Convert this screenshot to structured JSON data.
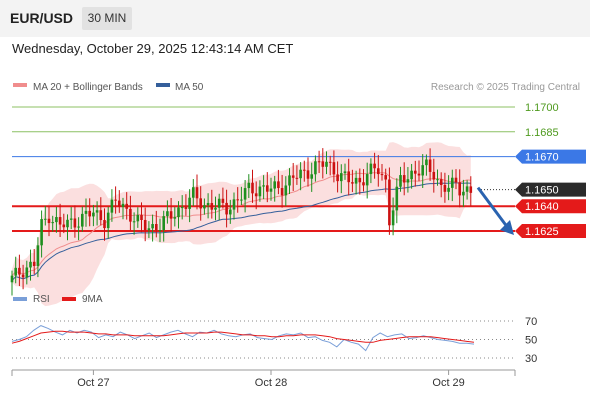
{
  "header": {
    "symbol": "EUR/USD",
    "timeframe": "30 MIN"
  },
  "datetime": "Wednesday, October 29, 2025 12:43:14 AM CET",
  "attribution": "Research © 2025 Trading Central",
  "colors": {
    "ma20": "#f08d8d",
    "ma50": "#355f9b",
    "bollinger": "#f9d4d4",
    "up": "#1f8f1f",
    "down": "#cc1111",
    "resistance": "#8cc063",
    "current_line": "#3b78e6",
    "support": "#e41a1a",
    "arrow": "#2a63b0",
    "rsi": "#7a9fd8",
    "rsi_ma": "#e41a1a"
  },
  "chart_data": [
    {
      "type": "candlestick",
      "title": "",
      "legend": [
        {
          "name": "MA 20 + Bollinger Bands",
          "color": "#f08d8d"
        },
        {
          "name": "MA 50",
          "color": "#355f9b"
        }
      ],
      "ylim": [
        1.159,
        1.1716
      ],
      "x_ticks": [
        {
          "label": "Oct 27",
          "index": 22
        },
        {
          "label": "Oct 28",
          "index": 70
        },
        {
          "label": "Oct 29",
          "index": 118
        }
      ],
      "levels": [
        {
          "value": 1.17,
          "label": "1.1700",
          "kind": "resistance"
        },
        {
          "value": 1.1685,
          "label": "1.1685",
          "kind": "resistance"
        },
        {
          "value": 1.167,
          "label": "1.1670",
          "kind": "pivot"
        },
        {
          "value": 1.165,
          "label": "1.1650",
          "kind": "current"
        },
        {
          "value": 1.164,
          "label": "1.1640",
          "kind": "support"
        },
        {
          "value": 1.1625,
          "label": "1.1625",
          "kind": "support"
        }
      ],
      "forecast_arrow": {
        "from": 1.165,
        "to": 1.1625
      },
      "anchors": [
        [
          0,
          1.1596
        ],
        [
          3,
          1.1602
        ],
        [
          6,
          1.1605
        ],
        [
          8,
          1.1628
        ],
        [
          10,
          1.1635
        ],
        [
          13,
          1.1628
        ],
        [
          16,
          1.163
        ],
        [
          19,
          1.1633
        ],
        [
          22,
          1.1636
        ],
        [
          25,
          1.1632
        ],
        [
          28,
          1.1643
        ],
        [
          31,
          1.1638
        ],
        [
          34,
          1.163
        ],
        [
          37,
          1.1627
        ],
        [
          40,
          1.1629
        ],
        [
          43,
          1.1634
        ],
        [
          46,
          1.164
        ],
        [
          49,
          1.1646
        ],
        [
          52,
          1.1641
        ],
        [
          55,
          1.164
        ],
        [
          58,
          1.1639
        ],
        [
          61,
          1.1644
        ],
        [
          64,
          1.165
        ],
        [
          67,
          1.1651
        ],
        [
          70,
          1.165
        ],
        [
          73,
          1.1652
        ],
        [
          76,
          1.1657
        ],
        [
          79,
          1.166
        ],
        [
          82,
          1.1664
        ],
        [
          85,
          1.1666
        ],
        [
          88,
          1.166
        ],
        [
          91,
          1.1655
        ],
        [
          94,
          1.1655
        ],
        [
          96,
          1.166
        ],
        [
          99,
          1.1662
        ],
        [
          101,
          1.1655
        ],
        [
          102,
          1.1632
        ],
        [
          103,
          1.164
        ],
        [
          105,
          1.1655
        ],
        [
          108,
          1.166
        ],
        [
          110,
          1.1662
        ],
        [
          112,
          1.1663
        ],
        [
          114,
          1.166
        ],
        [
          116,
          1.1652
        ],
        [
          118,
          1.1651
        ],
        [
          120,
          1.1653
        ],
        [
          121,
          1.1651
        ],
        [
          123,
          1.165
        ],
        [
          124,
          1.1649
        ]
      ]
    },
    {
      "type": "line",
      "title": "",
      "legend": [
        {
          "name": "RSI",
          "color": "#7a9fd8"
        },
        {
          "name": "9MA",
          "color": "#e41a1a"
        }
      ],
      "ylim": [
        30,
        70
      ],
      "y_ticks": [
        "70",
        "50",
        "30"
      ],
      "series": [
        {
          "name": "RSI",
          "values": [
            48,
            50,
            53,
            60,
            65,
            62,
            58,
            55,
            60,
            57,
            60,
            58,
            52,
            55,
            53,
            58,
            55,
            51,
            54,
            57,
            52,
            55,
            58,
            60,
            56,
            53,
            58,
            57,
            60,
            56,
            54,
            53,
            55,
            56,
            52,
            51,
            50,
            54,
            56,
            55,
            57,
            52,
            53,
            49,
            47,
            42,
            50,
            47,
            45,
            38,
            52,
            57,
            53,
            55,
            56,
            51,
            52,
            54,
            52,
            50,
            49,
            48,
            46,
            46,
            45
          ]
        },
        {
          "name": "9MA",
          "values": [
            46,
            48,
            51,
            54,
            57,
            58,
            59,
            59,
            58,
            58,
            58,
            57,
            56,
            56,
            55,
            55,
            55,
            54,
            54,
            54,
            54,
            54,
            55,
            56,
            57,
            57,
            57,
            57,
            58,
            58,
            57,
            56,
            55,
            55,
            54,
            54,
            53,
            53,
            54,
            54,
            55,
            55,
            55,
            54,
            53,
            51,
            50,
            49,
            48,
            47,
            47,
            49,
            50,
            51,
            52,
            53,
            53,
            53,
            53,
            52,
            51,
            50,
            49,
            48,
            47
          ]
        }
      ]
    }
  ]
}
